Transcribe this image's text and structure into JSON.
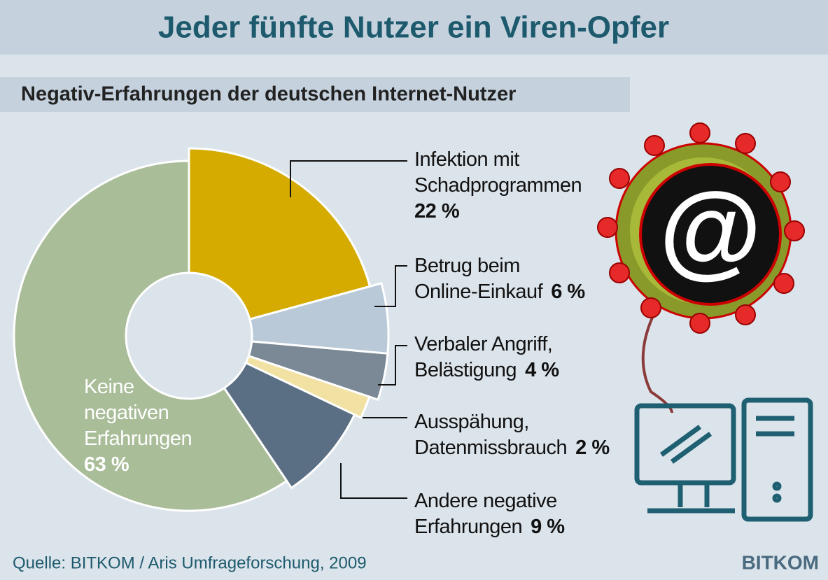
{
  "title": "Jeder fünfte Nutzer ein Viren-Opfer",
  "chart_data": {
    "type": "donut",
    "title": "Negativ-Erfahrungen der deutschen Internet-Nutzer",
    "categories": [
      "Infektion mit\nSchadprogrammen",
      "Betrug beim\nOnline-Einkauf",
      "Verbaler Angriff,\nBelästigung",
      "Ausspähung,\nDatenmissbrauch",
      "Andere negative\nErfahrungen",
      "Keine\nnegativen\nErfahrungen"
    ],
    "values": [
      22,
      6,
      4,
      2,
      9,
      63
    ],
    "value_labels": [
      "22 %",
      "6 %",
      "4 %",
      "2 %",
      "9 %",
      "63 %"
    ],
    "colors": [
      "#d5ab00",
      "#b9c9d8",
      "#7b8997",
      "#f1e1a2",
      "#5a6e84",
      "#a9bd99"
    ]
  },
  "source": "Quelle: BITKOM / Aris Umfrageforschung, 2009",
  "logo": "BITKOM"
}
